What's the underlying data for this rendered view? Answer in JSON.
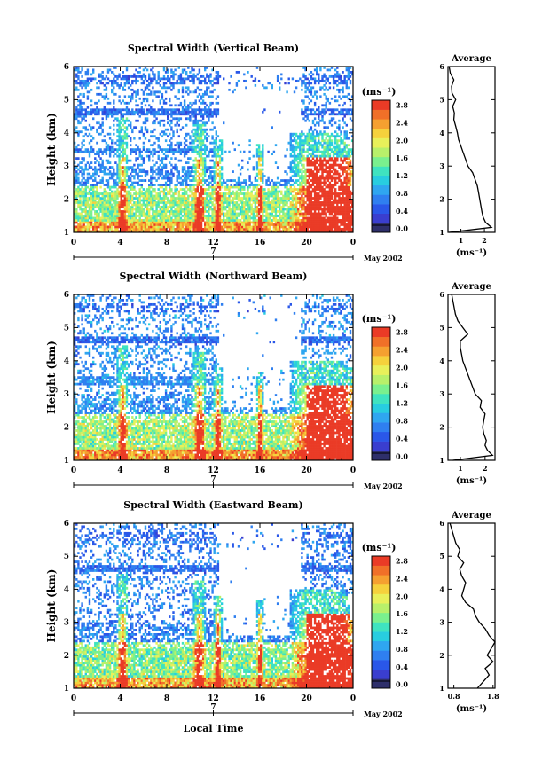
{
  "page": {
    "time_axis_title": "Local Time",
    "date_label": "May 2002",
    "date_marker": "7"
  },
  "colorbar": {
    "unit": "(ms⁻¹)",
    "tick_labels": [
      "0.0",
      "0.4",
      "0.8",
      "1.2",
      "1.6",
      "2.0",
      "2.4",
      "2.8"
    ],
    "colors": [
      "#2e2f6b",
      "#3a3ecf",
      "#2a57e8",
      "#2f7ff0",
      "#2fa6f0",
      "#28cde0",
      "#3fe3c0",
      "#7af08e",
      "#b8f06a",
      "#e8f05a",
      "#f5d13c",
      "#f5a030",
      "#f07028",
      "#ea3b26"
    ]
  },
  "chart_data": [
    {
      "type": "heatmap",
      "title": "Spectral Width (Vertical Beam)",
      "ylabel": "Height (km)",
      "xlabel": "",
      "x_ticks": [
        "0",
        "4",
        "8",
        "12",
        "16",
        "20",
        "0"
      ],
      "xlim": [
        0,
        24
      ],
      "y_ticks": [
        "1",
        "2",
        "3",
        "4",
        "5",
        "6"
      ],
      "ylim": [
        1,
        6
      ],
      "color_range": [
        0.0,
        3.0
      ],
      "profile": {
        "title": "Average",
        "xlabel": "(ms⁻¹)",
        "x_ticks": [
          "1",
          "2"
        ],
        "xlim": [
          0.45,
          2.45
        ],
        "y_ticks": [
          "1",
          "2",
          "3",
          "4",
          "5",
          "6"
        ],
        "heights": [
          1.0,
          1.15,
          1.3,
          1.45,
          1.6,
          1.8,
          2.0,
          2.2,
          2.4,
          2.6,
          2.8,
          3.0,
          3.2,
          3.4,
          3.6,
          3.8,
          4.0,
          4.2,
          4.4,
          4.6,
          4.8,
          5.0,
          5.2,
          5.4,
          5.6,
          5.8,
          6.0
        ],
        "values": [
          0.5,
          2.3,
          2.05,
          1.95,
          1.9,
          1.85,
          1.8,
          1.75,
          1.7,
          1.6,
          1.5,
          1.3,
          1.2,
          1.1,
          1.0,
          0.9,
          0.85,
          0.78,
          0.7,
          0.72,
          0.65,
          0.78,
          0.62,
          0.6,
          0.7,
          0.55,
          0.5
        ]
      }
    },
    {
      "type": "heatmap",
      "title": "Spectral Width (Northward Beam)",
      "ylabel": "Height (km)",
      "xlabel": "",
      "x_ticks": [
        "0",
        "4",
        "8",
        "12",
        "16",
        "20",
        "0"
      ],
      "xlim": [
        0,
        24
      ],
      "y_ticks": [
        "1",
        "2",
        "3",
        "4",
        "5",
        "6"
      ],
      "ylim": [
        1,
        6
      ],
      "color_range": [
        0.0,
        3.0
      ],
      "profile": {
        "title": "Average",
        "xlabel": "(ms⁻¹)",
        "x_ticks": [
          "1",
          "2"
        ],
        "xlim": [
          0.5,
          2.4
        ],
        "y_ticks": [
          "1",
          "2",
          "3",
          "4",
          "5",
          "6"
        ],
        "heights": [
          1.0,
          1.15,
          1.3,
          1.45,
          1.6,
          1.8,
          2.0,
          2.2,
          2.4,
          2.6,
          2.8,
          3.0,
          3.2,
          3.4,
          3.6,
          3.8,
          4.0,
          4.2,
          4.4,
          4.6,
          4.8,
          5.0,
          5.2,
          5.4,
          5.6,
          5.8,
          6.0
        ],
        "values": [
          0.7,
          2.3,
          2.1,
          2.0,
          2.05,
          1.95,
          1.9,
          1.95,
          2.0,
          1.8,
          1.85,
          1.6,
          1.5,
          1.4,
          1.3,
          1.2,
          1.1,
          1.05,
          1.0,
          1.0,
          1.3,
          1.1,
          0.9,
          0.8,
          0.75,
          0.7,
          0.65
        ]
      }
    },
    {
      "type": "heatmap",
      "title": "Spectral Width (Eastward Beam)",
      "ylabel": "Height (km)",
      "xlabel": "Local Time",
      "x_ticks": [
        "0",
        "4",
        "8",
        "12",
        "16",
        "20",
        "0"
      ],
      "xlim": [
        0,
        24
      ],
      "y_ticks": [
        "1",
        "2",
        "3",
        "4",
        "5",
        "6"
      ],
      "ylim": [
        1,
        6
      ],
      "color_range": [
        0.0,
        3.0
      ],
      "profile": {
        "title": "Average",
        "xlabel": "(ms⁻¹)",
        "x_ticks": [
          "0.8",
          "1.8"
        ],
        "xlim": [
          0.65,
          1.85
        ],
        "y_ticks": [
          "1",
          "2",
          "3",
          "4",
          "5",
          "6"
        ],
        "heights": [
          1.0,
          1.2,
          1.4,
          1.6,
          1.8,
          2.0,
          2.2,
          2.4,
          2.6,
          2.8,
          3.0,
          3.2,
          3.4,
          3.6,
          3.8,
          4.0,
          4.2,
          4.4,
          4.6,
          4.8,
          5.0,
          5.2,
          5.4,
          5.6,
          5.8,
          6.0
        ],
        "values": [
          1.4,
          1.55,
          1.7,
          1.6,
          1.8,
          1.65,
          1.75,
          1.85,
          1.7,
          1.6,
          1.45,
          1.35,
          1.3,
          1.1,
          1.0,
          1.05,
          1.1,
          1.0,
          0.95,
          1.05,
          0.9,
          0.95,
          0.85,
          0.8,
          0.75,
          0.7
        ]
      }
    }
  ]
}
